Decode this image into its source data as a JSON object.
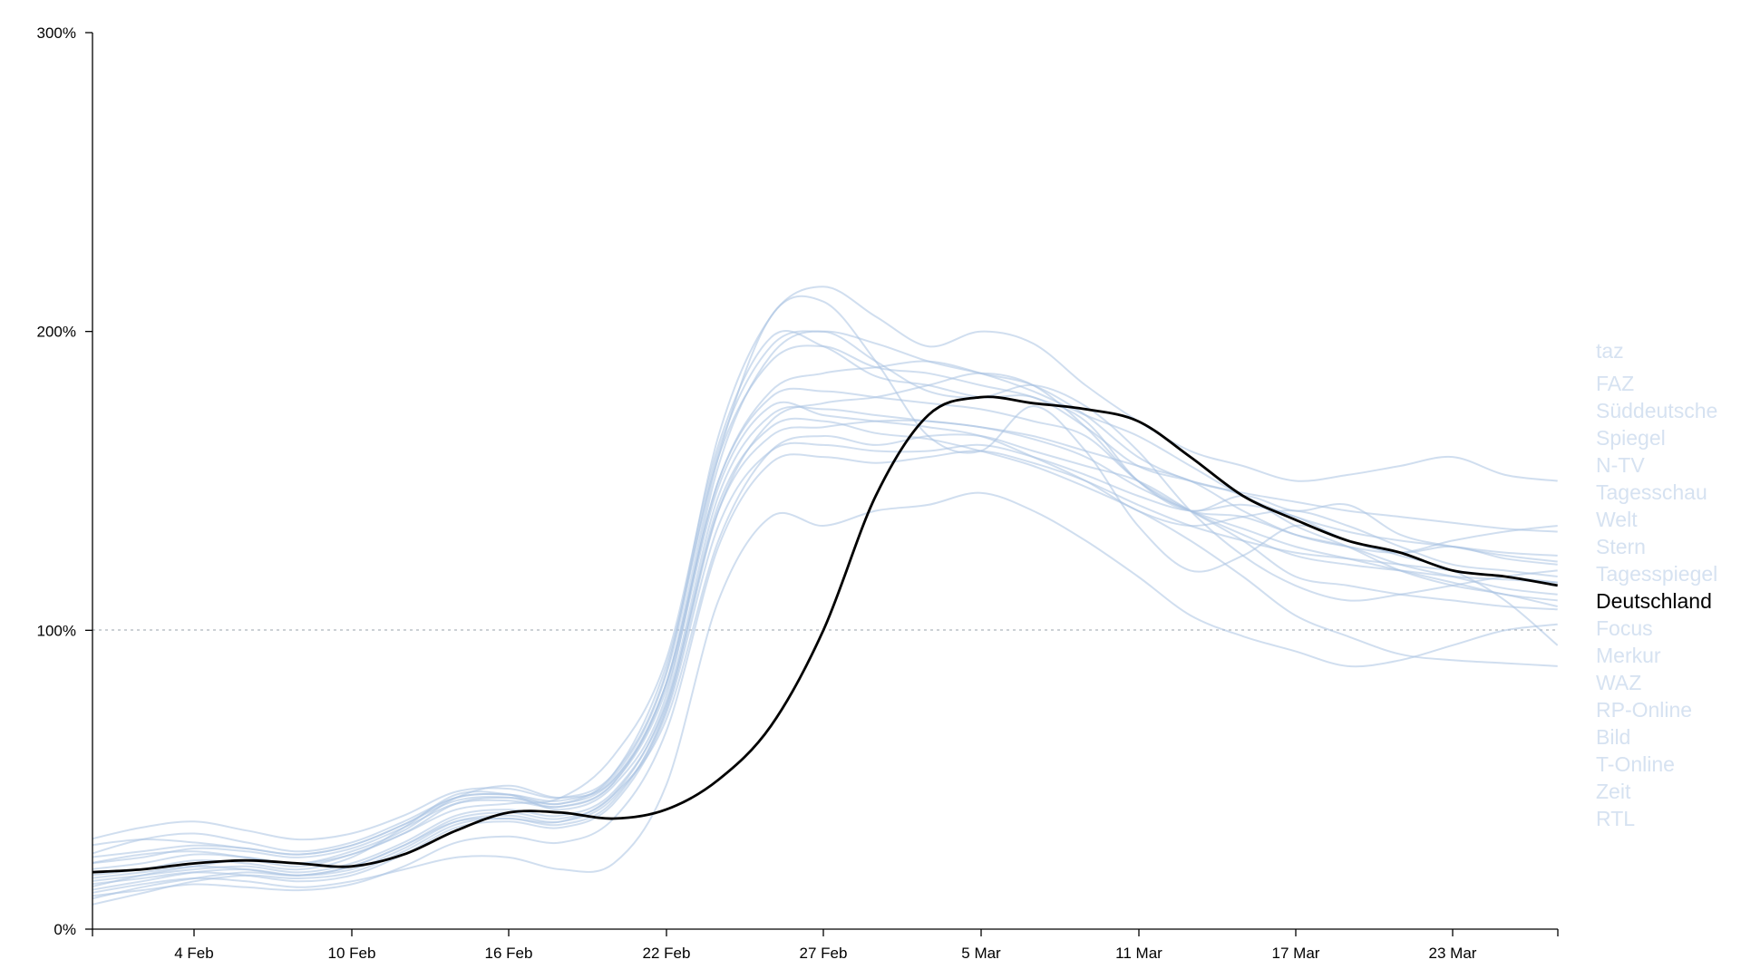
{
  "chart_data": {
    "type": "line",
    "title": "",
    "xlabel": "",
    "ylabel": "",
    "x_tick_labels": [
      "4 Feb",
      "10 Feb",
      "16 Feb",
      "22 Feb",
      "27 Feb",
      "5 Mar",
      "11 Mar",
      "17 Mar",
      "23 Mar"
    ],
    "y_tick_labels": [
      "0%",
      "100%",
      "200%",
      "300%"
    ],
    "ylim": [
      0,
      300
    ],
    "reference_line": 100,
    "grid": false,
    "legend_placement": "right",
    "highlighted_series": "Deutschland",
    "colors": {
      "highlight": "#000000",
      "others": "#a9c3e2",
      "legend_inactive": "#d6e2f1"
    },
    "x": [
      "31 Jan",
      "2 Feb",
      "4 Feb",
      "6 Feb",
      "8 Feb",
      "10 Feb",
      "12 Feb",
      "14 Feb",
      "16 Feb",
      "18 Feb",
      "20 Feb",
      "22 Feb",
      "24 Feb",
      "26 Feb",
      "28 Feb",
      "1 Mar",
      "3 Mar",
      "5 Mar",
      "7 Mar",
      "9 Mar",
      "11 Mar",
      "13 Mar",
      "15 Mar",
      "17 Mar",
      "19 Mar",
      "21 Mar",
      "23 Mar",
      "25 Mar",
      "27 Mar"
    ],
    "series": [
      {
        "name": "taz",
        "values": [
          22,
          25,
          26,
          24,
          22,
          26,
          33,
          44,
          48,
          44,
          50,
          82,
          158,
          205,
          210,
          190,
          165,
          160,
          175,
          160,
          135,
          120,
          125,
          135,
          130,
          125,
          120,
          110,
          95
        ]
      },
      {
        "name": "FAZ",
        "values": [
          14,
          18,
          21,
          23,
          21,
          25,
          32,
          40,
          42,
          44,
          58,
          90,
          162,
          198,
          195,
          185,
          182,
          178,
          178,
          168,
          155,
          150,
          145,
          135,
          128,
          120,
          115,
          112,
          108
        ]
      },
      {
        "name": "Süddeutsche",
        "values": [
          18,
          20,
          23,
          22,
          20,
          24,
          34,
          45,
          45,
          40,
          48,
          78,
          155,
          192,
          200,
          190,
          180,
          178,
          182,
          175,
          160,
          140,
          125,
          115,
          110,
          112,
          115,
          118,
          120
        ]
      },
      {
        "name": "Spiegel",
        "values": [
          10,
          14,
          17,
          19,
          18,
          21,
          28,
          36,
          37,
          36,
          45,
          70,
          130,
          160,
          165,
          162,
          165,
          165,
          160,
          155,
          150,
          140,
          130,
          118,
          115,
          112,
          110,
          108,
          107
        ]
      },
      {
        "name": "N-TV",
        "values": [
          25,
          30,
          32,
          29,
          26,
          29,
          36,
          44,
          45,
          42,
          52,
          88,
          158,
          190,
          195,
          188,
          186,
          182,
          178,
          170,
          150,
          140,
          145,
          140,
          142,
          132,
          128,
          125,
          123
        ]
      },
      {
        "name": "Tagesschau",
        "values": [
          20,
          22,
          25,
          24,
          22,
          25,
          32,
          42,
          44,
          42,
          50,
          82,
          150,
          178,
          180,
          178,
          176,
          174,
          170,
          165,
          150,
          140,
          132,
          125,
          122,
          120,
          118,
          117,
          116
        ]
      },
      {
        "name": "Welt",
        "values": [
          16,
          18,
          20,
          21,
          19,
          22,
          29,
          38,
          40,
          38,
          46,
          75,
          140,
          165,
          168,
          170,
          170,
          168,
          165,
          160,
          155,
          150,
          140,
          132,
          128,
          126,
          130,
          133,
          135
        ]
      },
      {
        "name": "Stern",
        "values": [
          12,
          15,
          17,
          16,
          14,
          16,
          20,
          24,
          24,
          20,
          22,
          48,
          110,
          138,
          135,
          140,
          142,
          146,
          140,
          130,
          118,
          105,
          98,
          93,
          88,
          90,
          95,
          100,
          102
        ]
      },
      {
        "name": "Tagesspiegel",
        "values": [
          22,
          24,
          27,
          26,
          24,
          27,
          34,
          42,
          43,
          41,
          49,
          80,
          148,
          175,
          172,
          170,
          168,
          165,
          158,
          150,
          140,
          135,
          138,
          140,
          135,
          128,
          122,
          120,
          118
        ]
      },
      {
        "name": "Deutschland",
        "values": [
          19,
          20,
          22,
          23,
          22,
          21,
          25,
          33,
          39,
          39,
          37,
          40,
          50,
          68,
          100,
          145,
          172,
          178,
          176,
          174,
          170,
          158,
          145,
          137,
          130,
          126,
          120,
          118,
          115
        ]
      },
      {
        "name": "Focus",
        "values": [
          15,
          17,
          19,
          18,
          16,
          18,
          25,
          34,
          36,
          34,
          42,
          72,
          135,
          160,
          162,
          160,
          160,
          162,
          158,
          152,
          145,
          140,
          142,
          138,
          130,
          126,
          128,
          124,
          122
        ]
      },
      {
        "name": "Merkur",
        "values": [
          11,
          13,
          15,
          14,
          13,
          15,
          21,
          29,
          31,
          29,
          37,
          66,
          128,
          156,
          158,
          156,
          158,
          160,
          156,
          150,
          142,
          135,
          130,
          126,
          124,
          122,
          120,
          118,
          116
        ]
      },
      {
        "name": "WAZ",
        "values": [
          28,
          30,
          29,
          27,
          25,
          28,
          35,
          43,
          44,
          41,
          49,
          82,
          150,
          180,
          186,
          188,
          190,
          186,
          180,
          172,
          165,
          155,
          145,
          138,
          133,
          130,
          128,
          126,
          125
        ]
      },
      {
        "name": "RP-Online",
        "values": [
          8,
          12,
          16,
          18,
          17,
          19,
          26,
          35,
          37,
          35,
          43,
          74,
          142,
          168,
          170,
          166,
          164,
          160,
          155,
          148,
          140,
          130,
          118,
          105,
          98,
          92,
          90,
          89,
          88
        ]
      },
      {
        "name": "Bild",
        "values": [
          24,
          26,
          28,
          27,
          25,
          28,
          35,
          44,
          45,
          43,
          51,
          85,
          160,
          195,
          200,
          196,
          190,
          186,
          182,
          172,
          158,
          150,
          146,
          143,
          140,
          138,
          136,
          134,
          133
        ]
      },
      {
        "name": "T-Online",
        "values": [
          13,
          16,
          19,
          20,
          18,
          20,
          27,
          36,
          38,
          36,
          44,
          73,
          140,
          170,
          176,
          178,
          182,
          186,
          182,
          168,
          150,
          140,
          138,
          132,
          128,
          122,
          118,
          114,
          112
        ]
      },
      {
        "name": "Zeit",
        "values": [
          30,
          34,
          36,
          33,
          30,
          32,
          38,
          46,
          47,
          44,
          52,
          86,
          165,
          205,
          215,
          205,
          195,
          200,
          196,
          182,
          170,
          160,
          155,
          150,
          152,
          155,
          158,
          152,
          150
        ]
      },
      {
        "name": "RTL",
        "values": [
          17,
          19,
          21,
          20,
          18,
          21,
          28,
          37,
          39,
          37,
          45,
          76,
          145,
          172,
          174,
          172,
          170,
          168,
          164,
          158,
          148,
          140,
          134,
          128,
          124,
          120,
          116,
          112,
          110
        ]
      }
    ]
  }
}
